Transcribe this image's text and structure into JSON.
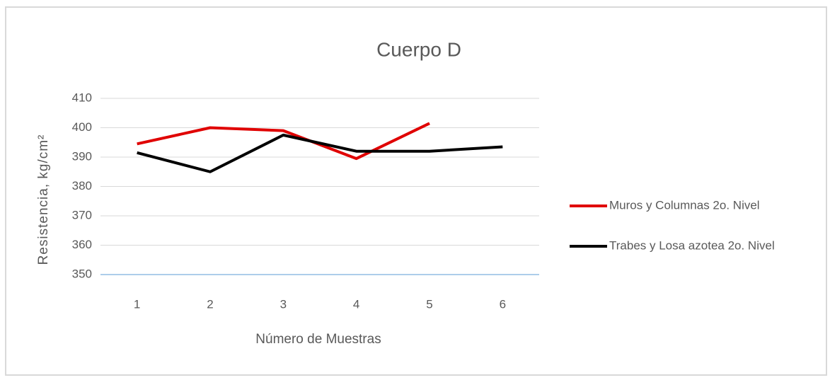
{
  "chart_data": {
    "type": "line",
    "title": "Cuerpo D",
    "xlabel": "Número de Muestras",
    "ylabel": "Resistencia, kg/cm²",
    "categories": [
      "1",
      "2",
      "3",
      "4",
      "5",
      "6"
    ],
    "series": [
      {
        "name": "Muros y Columnas 2o. Nivel",
        "color": "#e00000",
        "values": [
          394.5,
          400,
          399,
          389.5,
          401.5,
          null
        ]
      },
      {
        "name": "Trabes y Losa azotea 2o. Nivel",
        "color": "#000000",
        "values": [
          391.5,
          385,
          397.5,
          392,
          392,
          393.5
        ]
      }
    ],
    "ylim": [
      350,
      410
    ],
    "yticks": [
      350,
      360,
      370,
      380,
      390,
      400,
      410
    ],
    "grid": true,
    "legend": "right"
  }
}
